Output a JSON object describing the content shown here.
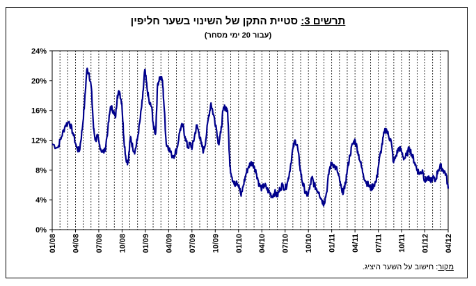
{
  "title": {
    "label": "תרשים 3:",
    "text": "סטיית התקן של השינוי בשער חליפין"
  },
  "subtitle": "(עבור 20 ימי מסחר)",
  "source": {
    "label": "מקור",
    "text": ": חישוב על השער היציג."
  },
  "colors": {
    "line": "#00008B",
    "grid": "#000000"
  },
  "chart_data": {
    "type": "line",
    "title": "תרשים 3: סטיית התקן של השינוי בשער חליפין",
    "subtitle": "(עבור 20 ימי מסחר)",
    "xlabel": "",
    "ylabel": "",
    "ylim": [
      0,
      24
    ],
    "yticks": [
      "0%",
      "4%",
      "8%",
      "12%",
      "16%",
      "20%",
      "24%"
    ],
    "xticks": [
      "01/08",
      "04/08",
      "07/08",
      "10/08",
      "01/09",
      "04/09",
      "07/09",
      "10/09",
      "01/10",
      "04/10",
      "07/10",
      "10/10",
      "01/11",
      "04/11",
      "07/11",
      "10/11",
      "01/12",
      "04/12"
    ],
    "grid": "vertical-dashed",
    "series": [
      {
        "values": [
          [
            0,
            11.5
          ],
          [
            1.5,
            11.0
          ],
          [
            2.5,
            12.5
          ],
          [
            3.5,
            14.0
          ],
          [
            4.5,
            14.5
          ],
          [
            5.5,
            13.0
          ],
          [
            6.5,
            11.0
          ],
          [
            7.2,
            10.5
          ],
          [
            8,
            13.5
          ],
          [
            8.6,
            17.0
          ],
          [
            9.2,
            21.5
          ],
          [
            9.8,
            21.0
          ],
          [
            10.4,
            19.0
          ],
          [
            11.0,
            13.5
          ],
          [
            11.5,
            12.0
          ],
          [
            12.0,
            12.5
          ],
          [
            12.5,
            11.5
          ],
          [
            13.2,
            10.5
          ],
          [
            14.0,
            10.5
          ],
          [
            14.8,
            13.5
          ],
          [
            15.5,
            16.5
          ],
          [
            16.2,
            16.0
          ],
          [
            16.8,
            15.0
          ],
          [
            17.3,
            18.0
          ],
          [
            17.9,
            18.5
          ],
          [
            18.5,
            17.0
          ],
          [
            19.0,
            12.5
          ],
          [
            19.6,
            9.5
          ],
          [
            20.2,
            9.0
          ],
          [
            20.8,
            12.5
          ],
          [
            21.4,
            11.0
          ],
          [
            22.0,
            10.5
          ],
          [
            22.6,
            12.0
          ],
          [
            23.3,
            14.5
          ],
          [
            24.0,
            17.5
          ],
          [
            24.6,
            21.5
          ],
          [
            25.2,
            19.0
          ],
          [
            25.8,
            17.0
          ],
          [
            26.4,
            16.5
          ],
          [
            27.0,
            13.5
          ],
          [
            27.5,
            13.0
          ],
          [
            28.0,
            19.5
          ],
          [
            28.6,
            20.5
          ],
          [
            29.3,
            20.0
          ],
          [
            29.8,
            16.0
          ],
          [
            30.3,
            11.5
          ],
          [
            31.0,
            11.0
          ],
          [
            31.7,
            10.0
          ],
          [
            32.5,
            10.0
          ],
          [
            33.2,
            11.0
          ],
          [
            34.0,
            13.5
          ],
          [
            34.7,
            14.0
          ],
          [
            35.3,
            12.5
          ],
          [
            36.0,
            11.0
          ],
          [
            36.6,
            11.5
          ],
          [
            37.2,
            11.0
          ],
          [
            37.8,
            12.5
          ],
          [
            38.4,
            14.0
          ],
          [
            39.0,
            13.0
          ],
          [
            39.6,
            11.5
          ],
          [
            40.2,
            10.5
          ],
          [
            40.8,
            12.0
          ],
          [
            41.5,
            15.0
          ],
          [
            42.2,
            17.0
          ],
          [
            42.8,
            15.5
          ],
          [
            43.5,
            14.0
          ],
          [
            44.2,
            11.5
          ],
          [
            44.8,
            13.0
          ],
          [
            45.4,
            16.0
          ],
          [
            46.0,
            16.5
          ],
          [
            46.6,
            16.0
          ],
          [
            47.2,
            8.5
          ],
          [
            47.8,
            7.0
          ],
          [
            48.4,
            6.0
          ],
          [
            49.0,
            6.5
          ],
          [
            49.6,
            6.0
          ],
          [
            50.2,
            4.5
          ],
          [
            50.8,
            6.0
          ],
          [
            51.5,
            7.5
          ],
          [
            52.2,
            8.5
          ],
          [
            53.0,
            9.0
          ],
          [
            53.7,
            8.5
          ],
          [
            54.3,
            7.5
          ],
          [
            55.0,
            6.0
          ],
          [
            55.7,
            5.5
          ],
          [
            56.4,
            6.0
          ],
          [
            57.0,
            5.5
          ],
          [
            57.7,
            5.0
          ],
          [
            58.4,
            4.5
          ],
          [
            59.1,
            5.0
          ],
          [
            59.8,
            4.5
          ],
          [
            60.5,
            5.5
          ],
          [
            61.2,
            6.0
          ],
          [
            61.9,
            5.5
          ],
          [
            62.6,
            6.5
          ],
          [
            63.3,
            8.5
          ],
          [
            64.0,
            11.0
          ],
          [
            64.6,
            12.0
          ],
          [
            65.2,
            11.0
          ],
          [
            65.8,
            8.5
          ],
          [
            66.4,
            6.5
          ],
          [
            67.0,
            5.5
          ],
          [
            67.7,
            4.5
          ],
          [
            68.4,
            5.5
          ],
          [
            69.0,
            7.0
          ],
          [
            69.6,
            6.0
          ],
          [
            70.2,
            5.5
          ],
          [
            70.9,
            5.0
          ],
          [
            71.6,
            4.0
          ],
          [
            72.2,
            3.5
          ],
          [
            72.9,
            5.0
          ],
          [
            73.6,
            8.0
          ],
          [
            74.3,
            9.0
          ],
          [
            75.0,
            8.5
          ],
          [
            75.7,
            8.0
          ],
          [
            76.4,
            6.5
          ],
          [
            77.0,
            5.0
          ],
          [
            77.7,
            5.5
          ],
          [
            78.4,
            8.0
          ],
          [
            79.1,
            10.0
          ],
          [
            79.8,
            11.5
          ],
          [
            80.5,
            12.0
          ],
          [
            81.2,
            10.5
          ],
          [
            81.9,
            9.0
          ],
          [
            82.6,
            7.5
          ],
          [
            83.3,
            6.5
          ],
          [
            84.0,
            6.0
          ],
          [
            84.7,
            5.5
          ],
          [
            85.4,
            6.0
          ],
          [
            86.1,
            6.5
          ],
          [
            86.8,
            9.0
          ],
          [
            87.5,
            11.0
          ],
          [
            88.2,
            13.0
          ],
          [
            88.8,
            13.5
          ],
          [
            89.4,
            12.5
          ],
          [
            90.0,
            12.0
          ],
          [
            90.7,
            9.0
          ],
          [
            91.4,
            10.0
          ],
          [
            92.1,
            11.0
          ],
          [
            92.8,
            10.5
          ],
          [
            93.5,
            9.5
          ],
          [
            94.2,
            10.0
          ],
          [
            94.9,
            11.0
          ],
          [
            95.6,
            10.0
          ],
          [
            96.3,
            9.0
          ],
          [
            97.0,
            8.0
          ],
          [
            97.7,
            7.5
          ],
          [
            98.4,
            8.0
          ],
          [
            99.0,
            6.5
          ],
          [
            99.7,
            7.0
          ],
          [
            100.4,
            6.5
          ],
          [
            101.1,
            7.0
          ],
          [
            101.8,
            6.5
          ],
          [
            102.5,
            8.0
          ],
          [
            103.2,
            8.5
          ],
          [
            103.9,
            8.0
          ],
          [
            104.6,
            7.5
          ],
          [
            105.2,
            5.5
          ]
        ]
      }
    ]
  }
}
